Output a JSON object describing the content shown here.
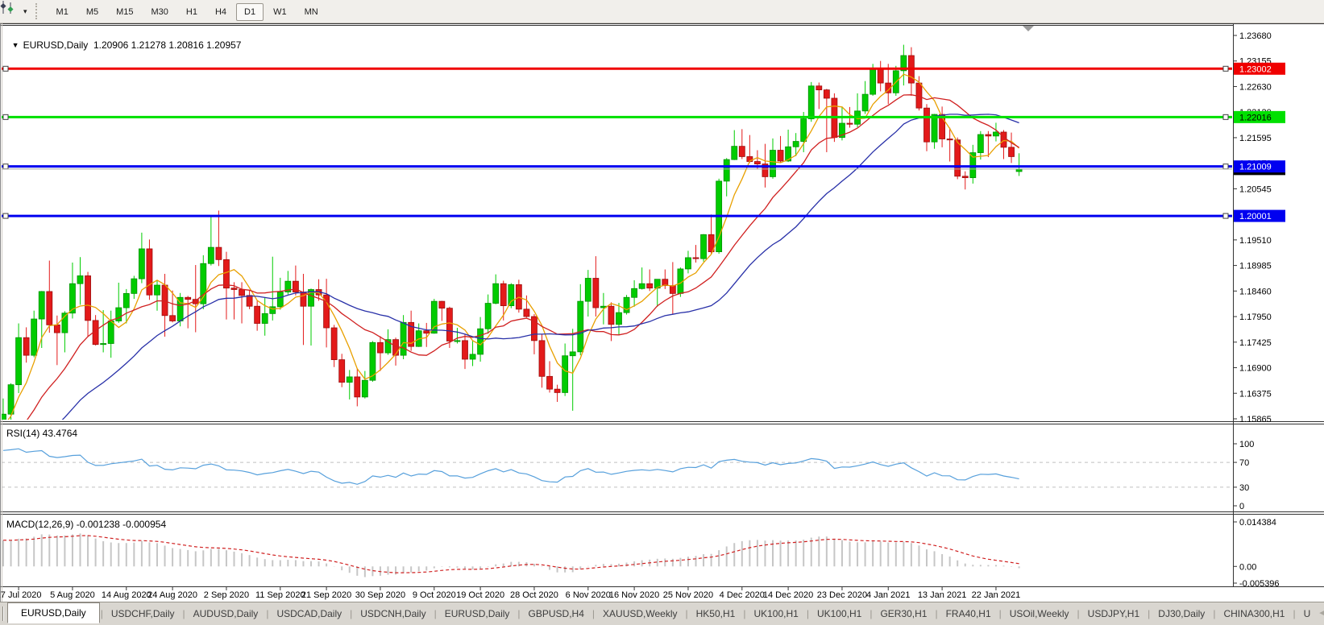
{
  "toolbar": {
    "chart_menu_icon": "chart-objects-icon",
    "dropdown_glyph": "▾",
    "timeframes": [
      {
        "label": "M1",
        "active": false
      },
      {
        "label": "M5",
        "active": false
      },
      {
        "label": "M15",
        "active": false
      },
      {
        "label": "M30",
        "active": false
      },
      {
        "label": "H1",
        "active": false
      },
      {
        "label": "H4",
        "active": false
      },
      {
        "label": "D1",
        "active": true
      },
      {
        "label": "W1",
        "active": false
      },
      {
        "label": "MN",
        "active": false
      }
    ]
  },
  "chart": {
    "dropdown_glyph": "▼",
    "title_symbol": "EURUSD,Daily",
    "title_ohlc": "1.20906 1.21278 1.20816 1.20957",
    "shift_marker_color": "#9a9a9a"
  },
  "price_axis": {
    "labels": [
      "1.23680",
      "1.23155",
      "1.22630",
      "1.22120",
      "1.21595",
      "1.21070",
      "1.20545",
      "1.20020",
      "1.19510",
      "1.18985",
      "1.18460",
      "1.17950",
      "1.17425",
      "1.16900",
      "1.16375",
      "1.15865"
    ]
  },
  "x_axis": {
    "labels": [
      {
        "text": "27 Jul 2020",
        "idx": 2
      },
      {
        "text": "5 Aug 2020",
        "idx": 9
      },
      {
        "text": "14 Aug 2020",
        "idx": 16
      },
      {
        "text": "24 Aug 2020",
        "idx": 22
      },
      {
        "text": "2 Sep 2020",
        "idx": 29
      },
      {
        "text": "11 Sep 2020",
        "idx": 36
      },
      {
        "text": "21 Sep 2020",
        "idx": 42
      },
      {
        "text": "30 Sep 2020",
        "idx": 49
      },
      {
        "text": "9 Oct 2020",
        "idx": 56
      },
      {
        "text": "19 Oct 2020",
        "idx": 62
      },
      {
        "text": "28 Oct 2020",
        "idx": 69
      },
      {
        "text": "6 Nov 2020",
        "idx": 76
      },
      {
        "text": "16 Nov 2020",
        "idx": 82
      },
      {
        "text": "25 Nov 2020",
        "idx": 89
      },
      {
        "text": "4 Dec 2020",
        "idx": 96
      },
      {
        "text": "14 Dec 2020",
        "idx": 102
      },
      {
        "text": "23 Dec 2020",
        "idx": 109
      },
      {
        "text": "4 Jan 2021",
        "idx": 115
      },
      {
        "text": "13 Jan 2021",
        "idx": 122
      },
      {
        "text": "22 Jan 2021",
        "idx": 129
      }
    ]
  },
  "indicators": {
    "rsi": {
      "label": "RSI(14) 43.4764",
      "period": 14,
      "value": 43.4764,
      "levels": [
        70,
        30
      ],
      "scale_labels": [
        {
          "text": "100",
          "v": 100
        },
        {
          "text": "70",
          "v": 70
        },
        {
          "text": "30",
          "v": 30
        },
        {
          "text": "0",
          "v": 0
        }
      ],
      "line_color": "#57a0dc",
      "level_color": "#c0c0c0"
    },
    "macd": {
      "label": "MACD(12,26,9) -0.001238 -0.000954",
      "fast": 12,
      "slow": 26,
      "signal": 9,
      "value": -0.001238,
      "signal_value": -0.000954,
      "scale_labels": [
        {
          "text": "0.014384",
          "v": 0.014384
        },
        {
          "text": "0.00",
          "v": 0
        },
        {
          "text": "-0.005396",
          "v": -0.005396
        }
      ],
      "bar_color": "#c6c6c6",
      "signal_color": "#d02020"
    }
  },
  "hlines": [
    {
      "price": 1.23002,
      "text": "1.23002",
      "color": "#f00000",
      "badge_fg": "#ffffff"
    },
    {
      "price": 1.22016,
      "text": "1.22016",
      "color": "#00e000",
      "badge_fg": "#000000"
    },
    {
      "price": 1.21009,
      "text": "1.21009",
      "color": "#0000f0",
      "badge_fg": "#ffffff"
    },
    {
      "price": 1.20001,
      "text": "1.20001",
      "color": "#0000f0",
      "badge_fg": "#ffffff"
    }
  ],
  "current_price": {
    "value": 1.20957,
    "text": "1.20957",
    "line_color": "#a8a8a8",
    "badge_bg": "#000000",
    "badge_fg": "#ffffff"
  },
  "chart_data": {
    "type": "candlestick",
    "symbol": "EURUSD",
    "timeframe": "Daily",
    "price_range": {
      "top": 1.2368,
      "bottom": 1.15865
    },
    "colors": {
      "bull": "#00cc00",
      "bull_edge": "#009100",
      "bear": "#e31a1a",
      "bear_edge": "#9c0d0d"
    },
    "ma_lines": [
      {
        "period": 5,
        "color": "#e8a000",
        "name": "fast-ma"
      },
      {
        "period": 13,
        "color": "#d02020",
        "name": "mid-ma"
      },
      {
        "period": 25,
        "color": "#2830a8",
        "name": "slow-ma"
      }
    ],
    "ma_seed": {
      "start": 1.128,
      "end": 1.158,
      "count": 30
    },
    "candles": [
      [
        1.1571,
        1.1628,
        1.1558,
        1.1596
      ],
      [
        1.1596,
        1.1659,
        1.158,
        1.1656
      ],
      [
        1.1656,
        1.1781,
        1.1639,
        1.1752
      ],
      [
        1.1752,
        1.1773,
        1.1701,
        1.1716
      ],
      [
        1.1716,
        1.1807,
        1.1712,
        1.179
      ],
      [
        1.179,
        1.1847,
        1.1731,
        1.1846
      ],
      [
        1.1846,
        1.1909,
        1.1762,
        1.1778
      ],
      [
        1.1778,
        1.1797,
        1.1696,
        1.1762
      ],
      [
        1.1762,
        1.1806,
        1.1722,
        1.1802
      ],
      [
        1.1802,
        1.1905,
        1.1791,
        1.1862
      ],
      [
        1.1862,
        1.1916,
        1.1819,
        1.1878
      ],
      [
        1.1878,
        1.1886,
        1.1754,
        1.1787
      ],
      [
        1.1787,
        1.1798,
        1.1736,
        1.1738
      ],
      [
        1.1738,
        1.1808,
        1.1722,
        1.174
      ],
      [
        1.174,
        1.1807,
        1.1711,
        1.1786
      ],
      [
        1.1786,
        1.1864,
        1.1782,
        1.1813
      ],
      [
        1.1813,
        1.1851,
        1.1781,
        1.1842
      ],
      [
        1.1842,
        1.1878,
        1.1831,
        1.1872
      ],
      [
        1.1872,
        1.1966,
        1.1863,
        1.1933
      ],
      [
        1.1933,
        1.1952,
        1.1829,
        1.1839
      ],
      [
        1.1839,
        1.1868,
        1.1807,
        1.1859
      ],
      [
        1.1859,
        1.1882,
        1.1754,
        1.1797
      ],
      [
        1.1797,
        1.1848,
        1.1783,
        1.1786
      ],
      [
        1.1786,
        1.1843,
        1.1775,
        1.1834
      ],
      [
        1.1834,
        1.1837,
        1.1771,
        1.183
      ],
      [
        1.183,
        1.19,
        1.1763,
        1.1821
      ],
      [
        1.1821,
        1.192,
        1.181,
        1.1903
      ],
      [
        1.1903,
        1.1998,
        1.1899,
        1.1936
      ],
      [
        1.1936,
        1.2011,
        1.1898,
        1.1911
      ],
      [
        1.1911,
        1.1927,
        1.1789,
        1.1853
      ],
      [
        1.1853,
        1.1865,
        1.1789,
        1.185
      ],
      [
        1.185,
        1.1865,
        1.1781,
        1.1838
      ],
      [
        1.1838,
        1.1848,
        1.181,
        1.1816
      ],
      [
        1.1816,
        1.1827,
        1.1766,
        1.1781
      ],
      [
        1.1781,
        1.1834,
        1.1756,
        1.1801
      ],
      [
        1.1801,
        1.1917,
        1.1787,
        1.1815
      ],
      [
        1.1815,
        1.1874,
        1.1809,
        1.1845
      ],
      [
        1.1845,
        1.1888,
        1.184,
        1.1867
      ],
      [
        1.1867,
        1.1899,
        1.1838,
        1.1845
      ],
      [
        1.1845,
        1.1882,
        1.1737,
        1.1816
      ],
      [
        1.1816,
        1.1852,
        1.1736,
        1.185
      ],
      [
        1.185,
        1.1871,
        1.1827,
        1.1839
      ],
      [
        1.1839,
        1.1872,
        1.1732,
        1.1772
      ],
      [
        1.1772,
        1.1778,
        1.1692,
        1.1707
      ],
      [
        1.1707,
        1.1719,
        1.1651,
        1.1661
      ],
      [
        1.1661,
        1.1686,
        1.1626,
        1.1672
      ],
      [
        1.1672,
        1.1688,
        1.1612,
        1.1631
      ],
      [
        1.1631,
        1.1684,
        1.1628,
        1.1665
      ],
      [
        1.1665,
        1.1745,
        1.1662,
        1.1742
      ],
      [
        1.1742,
        1.1755,
        1.1684,
        1.1721
      ],
      [
        1.1721,
        1.1769,
        1.1717,
        1.1748
      ],
      [
        1.1748,
        1.1752,
        1.1695,
        1.1716
      ],
      [
        1.1716,
        1.1798,
        1.1708,
        1.1783
      ],
      [
        1.1783,
        1.1807,
        1.1725,
        1.1734
      ],
      [
        1.1734,
        1.1781,
        1.1733,
        1.1766
      ],
      [
        1.1766,
        1.1782,
        1.1733,
        1.1761
      ],
      [
        1.1761,
        1.1831,
        1.176,
        1.1826
      ],
      [
        1.1826,
        1.1827,
        1.1786,
        1.1812
      ],
      [
        1.1812,
        1.1815,
        1.1731,
        1.1745
      ],
      [
        1.1745,
        1.1772,
        1.174,
        1.1746
      ],
      [
        1.1746,
        1.1758,
        1.1688,
        1.1708
      ],
      [
        1.1708,
        1.1746,
        1.1694,
        1.1718
      ],
      [
        1.1718,
        1.1794,
        1.1703,
        1.177
      ],
      [
        1.177,
        1.184,
        1.176,
        1.1822
      ],
      [
        1.1822,
        1.1881,
        1.182,
        1.1862
      ],
      [
        1.1862,
        1.1868,
        1.1787,
        1.1817
      ],
      [
        1.1817,
        1.1863,
        1.1812,
        1.186
      ],
      [
        1.186,
        1.187,
        1.1803,
        1.181
      ],
      [
        1.181,
        1.1838,
        1.1793,
        1.1795
      ],
      [
        1.1795,
        1.18,
        1.1718,
        1.1746
      ],
      [
        1.1746,
        1.1759,
        1.165,
        1.1673
      ],
      [
        1.1673,
        1.1704,
        1.164,
        1.1647
      ],
      [
        1.1647,
        1.1656,
        1.1621,
        1.164
      ],
      [
        1.164,
        1.174,
        1.1633,
        1.1715
      ],
      [
        1.1715,
        1.177,
        1.1603,
        1.1723
      ],
      [
        1.1723,
        1.1861,
        1.1716,
        1.1826
      ],
      [
        1.1826,
        1.189,
        1.1795,
        1.1873
      ],
      [
        1.1873,
        1.1918,
        1.1795,
        1.1813
      ],
      [
        1.1813,
        1.1843,
        1.1779,
        1.1816
      ],
      [
        1.1816,
        1.1824,
        1.1745,
        1.1779
      ],
      [
        1.1779,
        1.1823,
        1.1758,
        1.1803
      ],
      [
        1.1803,
        1.1839,
        1.1799,
        1.1834
      ],
      [
        1.1834,
        1.1869,
        1.1815,
        1.1852
      ],
      [
        1.1852,
        1.1895,
        1.185,
        1.1862
      ],
      [
        1.1862,
        1.1891,
        1.1847,
        1.1853
      ],
      [
        1.1853,
        1.1871,
        1.1815,
        1.1871
      ],
      [
        1.1871,
        1.1891,
        1.1851,
        1.1858
      ],
      [
        1.1858,
        1.1906,
        1.18,
        1.1842
      ],
      [
        1.1842,
        1.1895,
        1.1835,
        1.1892
      ],
      [
        1.1892,
        1.1929,
        1.1883,
        1.1915
      ],
      [
        1.1915,
        1.1941,
        1.1905,
        1.1913
      ],
      [
        1.1913,
        1.1963,
        1.1907,
        1.1962
      ],
      [
        1.1962,
        1.2003,
        1.1923,
        1.1927
      ],
      [
        1.1927,
        1.2076,
        1.1923,
        1.2071
      ],
      [
        1.2071,
        1.2118,
        1.204,
        1.2115
      ],
      [
        1.2115,
        1.2175,
        1.2114,
        1.2142
      ],
      [
        1.2142,
        1.2177,
        1.2116,
        1.2121
      ],
      [
        1.2121,
        1.2165,
        1.2108,
        1.2111
      ],
      [
        1.2111,
        1.2134,
        1.2095,
        1.2106
      ],
      [
        1.2106,
        1.2147,
        1.2058,
        1.208
      ],
      [
        1.208,
        1.2158,
        1.2076,
        1.2134
      ],
      [
        1.2134,
        1.2163,
        1.2109,
        1.2112
      ],
      [
        1.2112,
        1.2176,
        1.211,
        1.2141
      ],
      [
        1.2141,
        1.2169,
        1.2122,
        1.2152
      ],
      [
        1.2152,
        1.2212,
        1.213,
        1.2198
      ],
      [
        1.2198,
        1.2273,
        1.2192,
        1.2265
      ],
      [
        1.2265,
        1.2272,
        1.2218,
        1.2257
      ],
      [
        1.2257,
        1.2259,
        1.213,
        1.224
      ],
      [
        1.224,
        1.225,
        1.2151,
        1.216
      ],
      [
        1.216,
        1.2222,
        1.2154,
        1.2189
      ],
      [
        1.2189,
        1.2222,
        1.218,
        1.2187
      ],
      [
        1.2187,
        1.225,
        1.2181,
        1.2214
      ],
      [
        1.2214,
        1.2275,
        1.2208,
        1.2248
      ],
      [
        1.2248,
        1.231,
        1.2245,
        1.2299
      ],
      [
        1.2299,
        1.2316,
        1.2254,
        1.2271
      ],
      [
        1.2271,
        1.231,
        1.2228,
        1.2251
      ],
      [
        1.2251,
        1.2306,
        1.2245,
        1.2296
      ],
      [
        1.2296,
        1.2349,
        1.2266,
        1.2327
      ],
      [
        1.2327,
        1.2344,
        1.2245,
        1.2271
      ],
      [
        1.2271,
        1.2285,
        1.2215,
        1.222
      ],
      [
        1.222,
        1.2228,
        1.2132,
        1.2151
      ],
      [
        1.2151,
        1.2208,
        1.2137,
        1.2207
      ],
      [
        1.2207,
        1.2223,
        1.214,
        1.2157
      ],
      [
        1.2157,
        1.218,
        1.2111,
        1.2155
      ],
      [
        1.2155,
        1.216,
        1.2075,
        1.2081
      ],
      [
        1.2081,
        1.2091,
        1.2054,
        1.2078
      ],
      [
        1.2078,
        1.2145,
        1.2066,
        1.2129
      ],
      [
        1.2129,
        1.2173,
        1.2115,
        1.2166
      ],
      [
        1.2166,
        1.2173,
        1.212,
        1.2163
      ],
      [
        1.2163,
        1.219,
        1.2152,
        1.2171
      ],
      [
        1.2171,
        1.2175,
        1.2116,
        1.214
      ],
      [
        1.214,
        1.217,
        1.2108,
        1.2121
      ],
      [
        1.20906,
        1.21278,
        1.20816,
        1.20957
      ]
    ]
  },
  "tabs": {
    "items": [
      {
        "label": "EURUSD,Daily",
        "active": true
      },
      {
        "label": "USDCHF,Daily",
        "active": false
      },
      {
        "label": "AUDUSD,Daily",
        "active": false
      },
      {
        "label": "USDCAD,Daily",
        "active": false
      },
      {
        "label": "USDCNH,Daily",
        "active": false
      },
      {
        "label": "EURUSD,Daily",
        "active": false
      },
      {
        "label": "GBPUSD,H4",
        "active": false
      },
      {
        "label": "XAUUSD,Weekly",
        "active": false
      },
      {
        "label": "HK50,H1",
        "active": false
      },
      {
        "label": "UK100,H1",
        "active": false
      },
      {
        "label": "UK100,H1",
        "active": false
      },
      {
        "label": "GER30,H1",
        "active": false
      },
      {
        "label": "FRA40,H1",
        "active": false
      },
      {
        "label": "USOil,Weekly",
        "active": false
      },
      {
        "label": "USDJPY,H1",
        "active": false
      },
      {
        "label": "DJ30,Daily",
        "active": false
      },
      {
        "label": "CHINA300,H1",
        "active": false
      },
      {
        "label": "U",
        "active": false
      }
    ],
    "scroll_left": "◄",
    "scroll_right": "►"
  }
}
